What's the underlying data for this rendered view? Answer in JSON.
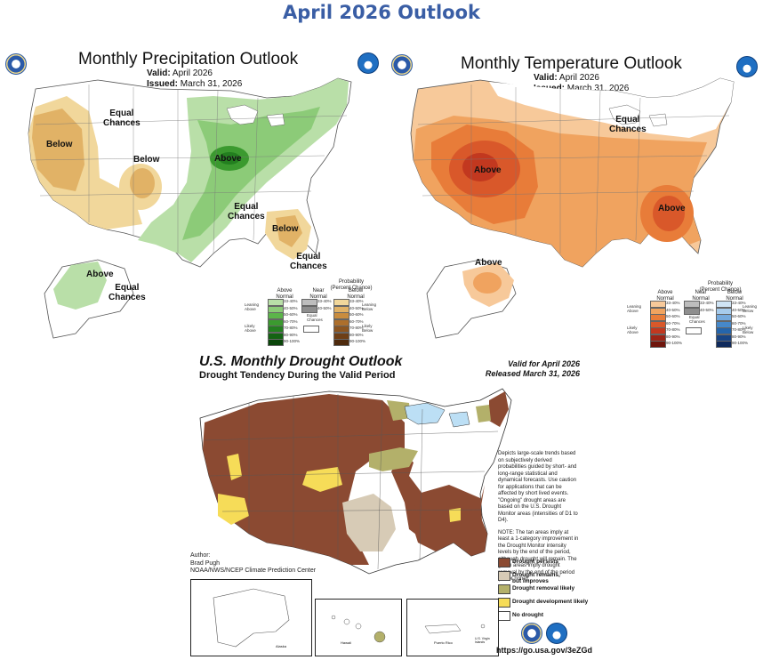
{
  "page_title": "April 2026 Outlook",
  "precip": {
    "title": "Monthly Precipitation Outlook",
    "valid_label": "Valid:",
    "valid_value": "April 2026",
    "issued_label": "Issued:",
    "issued_value": "March 31, 2026",
    "labels": {
      "equal_chances_north": "Equal\nChances",
      "below_west": "Below",
      "below_plains": "Below",
      "above_midwest": "Above",
      "equal_chances_south": "Equal\nChances",
      "below_southeast": "Below",
      "equal_chances_fl": "Equal\nChances",
      "above_alaska": "Above",
      "equal_chances_ak": "Equal\nChances"
    },
    "legend": {
      "title": "Probability\n(Percent Chance)",
      "col_above": "Above\nNormal",
      "col_near": "Near\nNormal",
      "col_below": "Below\nNormal",
      "leaning_above": "Leaning\nAbove",
      "likely_above": "Likely\nAbove",
      "leaning_below": "Leaning\nBelow",
      "likely_below": "Likely\nBelow",
      "equal_chances": "Equal\nChances",
      "ranges": [
        "33-40%",
        "40-50%",
        "50-60%",
        "60-70%",
        "70-80%",
        "80-90%",
        "90-100%"
      ],
      "near_ranges": [
        "33-40%",
        "40-50%"
      ],
      "above_colors": [
        "#b9dfa8",
        "#8ccb78",
        "#5cb54a",
        "#3b9a2f",
        "#237f1f",
        "#146313",
        "#0a460a"
      ],
      "below_colors": [
        "#f1d79b",
        "#e1b266",
        "#c98d3f",
        "#ad6f2c",
        "#8c5520",
        "#6e3f16",
        "#4e2a0d"
      ],
      "near_colors": [
        "#bdbdbd",
        "#8e8e8e"
      ]
    }
  },
  "temp": {
    "title": "Monthly Temperature Outlook",
    "valid_label": "Valid:",
    "valid_value": "April 2026",
    "issued_label": "Issued:",
    "issued_value": "March 31, 2026",
    "labels": {
      "equal_chances": "Equal\nChances",
      "above_west": "Above",
      "above_southeast": "Above",
      "above_alaska": "Above"
    },
    "legend": {
      "title": "Probability\n(Percent Chance)",
      "col_above": "Above\nNormal",
      "col_near": "Near\nNormal",
      "col_below": "Below\nNormal",
      "leaning_above": "Leaning\nAbove",
      "likely_above": "Likely\nAbove",
      "leaning_below": "Leaning\nBelow",
      "likely_below": "Likely\nBelow",
      "equal_chances": "Equal\nChances",
      "ranges": [
        "33-40%",
        "40-50%",
        "50-60%",
        "60-70%",
        "70-80%",
        "80-90%",
        "90-100%"
      ],
      "near_ranges": [
        "33-40%",
        "40-50%"
      ],
      "above_colors": [
        "#f7c99a",
        "#f0a35f",
        "#e87c39",
        "#d9582a",
        "#c2381f",
        "#9c2416",
        "#6f160d"
      ],
      "below_colors": [
        "#cfe4f5",
        "#a6cbec",
        "#74a9dd",
        "#4688c9",
        "#2565ab",
        "#184484",
        "#0f2a5c"
      ],
      "near_colors": [
        "#bdbdbd",
        "#8e8e8e"
      ]
    }
  },
  "drought": {
    "title": "U.S. Monthly Drought Outlook",
    "subtitle": "Drought Tendency During the Valid Period",
    "valid_for": "Valid for April 2026",
    "released": "Released March 31, 2026",
    "description": "Depicts large-scale trends based on subjectively derived probabilities guided by short- and long-range statistical and dynamical forecasts. Use caution for applications that can be affected by short lived events. \"Ongoing\" drought areas are based on the U.S. Drought Monitor areas (intensities of D1 to D4).",
    "note": "NOTE: The tan areas imply at least a 1-category improvement in the Drought Monitor intensity levels by the end of the period, although drought will remain. The green areas imply drought removal by the end of the period (D0 or none).",
    "author_label": "Author:",
    "author_name": "Brad Pugh",
    "author_org": "NOAA/NWS/NCEP Climate Prediction Center",
    "url": "https://go.usa.gov/3eZGd",
    "legend": [
      {
        "label": "Drought persists",
        "color": "#8b4a32"
      },
      {
        "label": "Drought remains,\nbut improves",
        "color": "#d7cbb6"
      },
      {
        "label": "Drought removal likely",
        "color": "#b3b06a"
      },
      {
        "label": "Drought development likely",
        "color": "#f6dc58"
      },
      {
        "label": "No drought",
        "color": "#ffffff"
      }
    ],
    "inset_labels": {
      "alaska": "Alaska",
      "hawaii": "Hawaii",
      "puerto_rico": "Puerto Rico",
      "usvi": "U.S. Virgin\nIslands"
    }
  }
}
